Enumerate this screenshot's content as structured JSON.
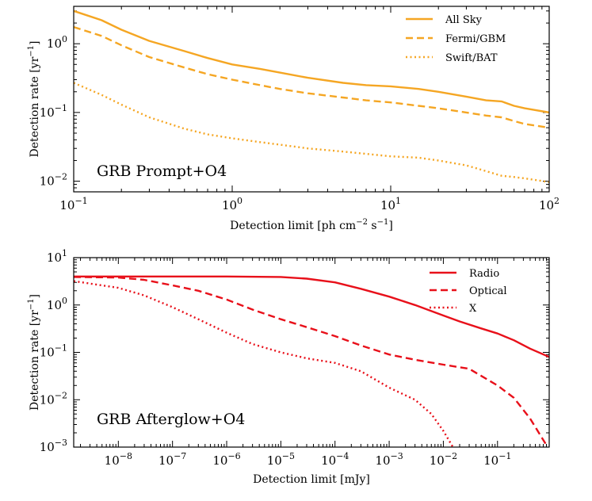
{
  "chart_data": [
    {
      "type": "line",
      "annotation": "GRB Prompt+O4",
      "xlabel_parts": [
        "Detection limit  [ph cm",
        "−2",
        " s",
        "−1",
        "]"
      ],
      "ylabel_parts": [
        "Detection rate [yr",
        "−1",
        "]"
      ],
      "xscale": "log",
      "yscale": "log",
      "xlim": [
        0.1,
        100
      ],
      "ylim": [
        0.007,
        3.5
      ],
      "x_ticks": [
        {
          "value": 0.1,
          "base": "10",
          "exp": "−1"
        },
        {
          "value": 1,
          "base": "10",
          "exp": "0"
        },
        {
          "value": 10,
          "base": "10",
          "exp": "1"
        },
        {
          "value": 100,
          "base": "10",
          "exp": "2"
        }
      ],
      "y_ticks": [
        {
          "value": 0.01,
          "base": "10",
          "exp": "−2"
        },
        {
          "value": 0.1,
          "base": "10",
          "exp": "−1"
        },
        {
          "value": 1,
          "base": "10",
          "exp": "0"
        }
      ],
      "legend_position": "top-right",
      "series": [
        {
          "name": "All Sky",
          "color": "#f5a623",
          "dash": "solid",
          "x": [
            0.1,
            0.15,
            0.2,
            0.3,
            0.5,
            0.7,
            1,
            1.5,
            2,
            3,
            5,
            7,
            10,
            15,
            20,
            30,
            40,
            50,
            60,
            70,
            100
          ],
          "y": [
            3.0,
            2.2,
            1.6,
            1.1,
            0.78,
            0.62,
            0.5,
            0.43,
            0.38,
            0.32,
            0.27,
            0.25,
            0.24,
            0.22,
            0.2,
            0.17,
            0.15,
            0.145,
            0.125,
            0.115,
            0.1
          ]
        },
        {
          "name": "Fermi/GBM",
          "color": "#f5a623",
          "dash": "dashed",
          "x": [
            0.1,
            0.15,
            0.2,
            0.3,
            0.5,
            0.7,
            1,
            1.5,
            2,
            3,
            5,
            7,
            10,
            15,
            20,
            30,
            40,
            50,
            60,
            70,
            100
          ],
          "y": [
            1.75,
            1.3,
            0.95,
            0.64,
            0.45,
            0.36,
            0.3,
            0.25,
            0.22,
            0.19,
            0.165,
            0.15,
            0.14,
            0.125,
            0.115,
            0.1,
            0.09,
            0.085,
            0.075,
            0.068,
            0.06
          ]
        },
        {
          "name": "Swift/BAT",
          "color": "#f5a623",
          "dash": "dotted",
          "x": [
            0.1,
            0.15,
            0.2,
            0.3,
            0.5,
            0.7,
            1,
            1.5,
            2,
            3,
            5,
            7,
            10,
            15,
            20,
            30,
            40,
            50,
            60,
            70,
            100
          ],
          "y": [
            0.27,
            0.18,
            0.13,
            0.085,
            0.058,
            0.048,
            0.042,
            0.037,
            0.034,
            0.03,
            0.027,
            0.025,
            0.023,
            0.022,
            0.02,
            0.017,
            0.014,
            0.012,
            0.0115,
            0.011,
            0.0097
          ]
        }
      ]
    },
    {
      "type": "line",
      "annotation": "GRB Afterglow+O4",
      "xlabel_parts": [
        "Detection limit  [mJy]"
      ],
      "ylabel_parts": [
        "Detection rate [yr",
        "−1",
        "]"
      ],
      "xscale": "log",
      "yscale": "log",
      "xlim": [
        1.5e-09,
        0.9
      ],
      "ylim": [
        0.001,
        10
      ],
      "x_ticks": [
        {
          "value": 1e-08,
          "base": "10",
          "exp": "−8"
        },
        {
          "value": 1e-07,
          "base": "10",
          "exp": "−7"
        },
        {
          "value": 1e-06,
          "base": "10",
          "exp": "−6"
        },
        {
          "value": 1e-05,
          "base": "10",
          "exp": "−5"
        },
        {
          "value": 0.0001,
          "base": "10",
          "exp": "−4"
        },
        {
          "value": 0.001,
          "base": "10",
          "exp": "−3"
        },
        {
          "value": 0.01,
          "base": "10",
          "exp": "−2"
        },
        {
          "value": 0.1,
          "base": "10",
          "exp": "−1"
        }
      ],
      "y_ticks": [
        {
          "value": 0.001,
          "base": "10",
          "exp": "−3"
        },
        {
          "value": 0.01,
          "base": "10",
          "exp": "−2"
        },
        {
          "value": 0.1,
          "base": "10",
          "exp": "−1"
        },
        {
          "value": 1,
          "base": "10",
          "exp": "0"
        },
        {
          "value": 10,
          "base": "10",
          "exp": "1"
        }
      ],
      "legend_position": "top-right",
      "series": [
        {
          "name": "Radio",
          "color": "#e8101a",
          "dash": "solid",
          "x": [
            1.5e-09,
            1e-08,
            1e-07,
            1e-06,
            1e-05,
            3e-05,
            0.0001,
            0.0003,
            0.001,
            0.003,
            0.01,
            0.02,
            0.05,
            0.1,
            0.2,
            0.4,
            0.9
          ],
          "y": [
            4.0,
            4.0,
            4.0,
            4.0,
            3.9,
            3.6,
            3.0,
            2.2,
            1.5,
            1.0,
            0.6,
            0.45,
            0.32,
            0.25,
            0.18,
            0.12,
            0.08
          ]
        },
        {
          "name": "Optical",
          "color": "#e8101a",
          "dash": "dashed",
          "x": [
            1.5e-09,
            1e-08,
            3e-08,
            1e-07,
            3e-07,
            1e-06,
            3e-06,
            1e-05,
            3e-05,
            0.0001,
            0.0003,
            0.001,
            0.003,
            0.01,
            0.03,
            0.1,
            0.2,
            0.4,
            0.8
          ],
          "y": [
            3.9,
            3.8,
            3.4,
            2.6,
            2.0,
            1.3,
            0.8,
            0.5,
            0.34,
            0.22,
            0.14,
            0.09,
            0.07,
            0.055,
            0.045,
            0.02,
            0.011,
            0.004,
            0.0011
          ]
        },
        {
          "name": "X",
          "color": "#e8101a",
          "dash": "dotted",
          "x": [
            1.5e-09,
            1e-08,
            3e-08,
            1e-07,
            3e-07,
            1e-06,
            3e-06,
            1e-05,
            3e-05,
            0.0001,
            0.0003,
            0.001,
            0.003,
            0.006,
            0.01,
            0.015
          ],
          "y": [
            3.2,
            2.3,
            1.6,
            0.9,
            0.5,
            0.26,
            0.15,
            0.1,
            0.075,
            0.06,
            0.04,
            0.018,
            0.01,
            0.005,
            0.0022,
            0.001
          ]
        }
      ]
    }
  ]
}
